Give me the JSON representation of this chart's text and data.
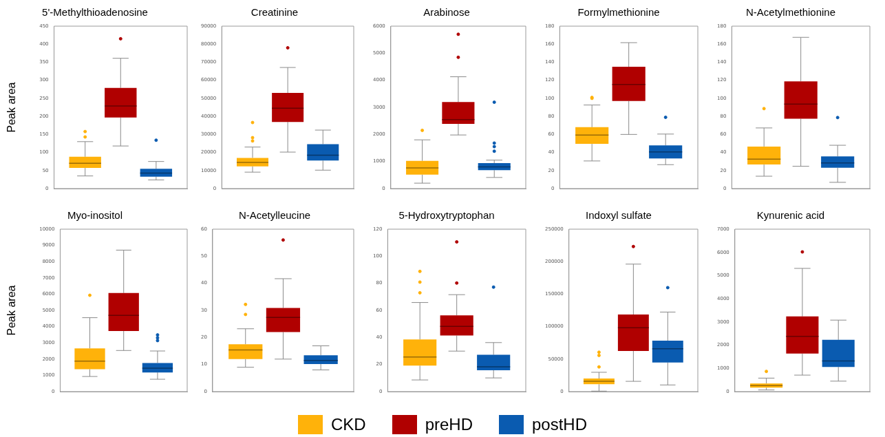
{
  "chart_data": [
    {
      "type": "box",
      "title": "5'-Methylthioadenosine",
      "ylabel": "Peak area",
      "categories": [
        null
      ],
      "ylim": [
        0,
        450
      ],
      "yticks": [
        0,
        50,
        100,
        150,
        200,
        250,
        300,
        350,
        400,
        450
      ],
      "tick_labels": "y",
      "legend": "bottom",
      "series": [
        {
          "name": "CKD",
          "color": "#ffb20a",
          "boxes": [
            {
              "low": 35,
              "q1": 57,
              "median": 70,
              "q3": 88,
              "high": 130,
              "outliers": [
                143,
                158
              ]
            }
          ]
        },
        {
          "name": "preHD",
          "color": "#b00000",
          "boxes": [
            {
              "low": 118,
              "q1": 197,
              "median": 229,
              "q3": 279,
              "high": 361,
              "outliers": [
                415
              ]
            }
          ]
        },
        {
          "name": "postHD",
          "color": "#0a5bb0",
          "boxes": [
            {
              "low": 24,
              "q1": 33,
              "median": 43,
              "q3": 55,
              "high": 75,
              "outliers": [
                134
              ]
            }
          ]
        }
      ]
    },
    {
      "type": "box",
      "title": "Creatinine",
      "categories": [
        null
      ],
      "ylim": [
        0,
        90000
      ],
      "yticks": [
        0,
        10000,
        20000,
        30000,
        40000,
        50000,
        60000,
        70000,
        80000,
        90000
      ],
      "tick_labels": "y",
      "series": [
        {
          "color": "#ffb20a",
          "boxes": [
            {
              "low": 9100,
              "q1": 12300,
              "median": 14500,
              "q3": 17000,
              "high": 23000,
              "outliers": [
                26400,
                28200,
                36600
              ]
            }
          ]
        },
        {
          "color": "#b00000",
          "boxes": [
            {
              "low": 20200,
              "q1": 36900,
              "median": 44500,
              "q3": 53000,
              "high": 67100,
              "outliers": [
                78000
              ]
            }
          ]
        },
        {
          "color": "#0a5bb0",
          "boxes": [
            {
              "low": 10200,
              "q1": 15500,
              "median": 18500,
              "q3": 24600,
              "high": 32400
            }
          ]
        }
      ]
    },
    {
      "type": "box",
      "title": "Arabinose",
      "categories": [
        null
      ],
      "ylim": [
        0,
        6000
      ],
      "yticks": [
        0,
        1000,
        2000,
        3000,
        4000,
        5000,
        6000
      ],
      "tick_labels": "y",
      "series": [
        {
          "color": "#ffb20a",
          "boxes": [
            {
              "low": 200,
              "q1": 516,
              "median": 760,
              "q3": 1023,
              "high": 1800,
              "outliers": [
                2150
              ]
            }
          ]
        },
        {
          "color": "#b00000",
          "boxes": [
            {
              "low": 1980,
              "q1": 2390,
              "median": 2550,
              "q3": 3195,
              "high": 4130,
              "outliers": [
                4850,
                5700
              ]
            }
          ]
        },
        {
          "color": "#0a5bb0",
          "boxes": [
            {
              "low": 410,
              "q1": 680,
              "median": 800,
              "q3": 940,
              "high": 1050,
              "outliers": [
                1380,
                1550,
                1680,
                3190
              ]
            }
          ]
        }
      ]
    },
    {
      "type": "box",
      "title": "Formylmethionine",
      "categories": [
        null
      ],
      "ylim": [
        0,
        180
      ],
      "yticks": [
        0,
        20,
        40,
        60,
        80,
        100,
        120,
        140,
        160,
        180
      ],
      "tick_labels": "y",
      "series": [
        {
          "color": "#ffb20a",
          "boxes": [
            {
              "low": 30.6,
              "q1": 49.5,
              "median": 59.3,
              "q3": 68,
              "high": 92.6,
              "outliers": [
                100,
                101
              ]
            }
          ]
        },
        {
          "color": "#b00000",
          "boxes": [
            {
              "low": 60,
              "q1": 97,
              "median": 115.3,
              "q3": 135,
              "high": 161.7
            }
          ]
        },
        {
          "color": "#0a5bb0",
          "boxes": [
            {
              "low": 26.5,
              "q1": 33.3,
              "median": 40.7,
              "q3": 47.8,
              "high": 60.4,
              "outliers": [
                79
              ]
            }
          ]
        }
      ]
    },
    {
      "type": "box",
      "title": "N-Acetylmethionine",
      "categories": [
        null
      ],
      "ylim": [
        0,
        180
      ],
      "yticks": [
        0,
        20,
        40,
        60,
        80,
        100,
        120,
        140,
        160,
        180
      ],
      "tick_labels": "y",
      "series": [
        {
          "color": "#ffb20a",
          "boxes": [
            {
              "low": 13.7,
              "q1": 26.6,
              "median": 32.6,
              "q3": 46.6,
              "high": 67.2,
              "outliers": [
                88.6
              ]
            }
          ]
        },
        {
          "color": "#b00000",
          "boxes": [
            {
              "low": 24.7,
              "q1": 77.4,
              "median": 93.6,
              "q3": 118.8,
              "high": 167.6
            }
          ]
        },
        {
          "color": "#0a5bb0",
          "boxes": [
            {
              "low": 6.9,
              "q1": 23,
              "median": 28.5,
              "q3": 35.7,
              "high": 48,
              "outliers": [
                78.7
              ]
            }
          ]
        }
      ]
    },
    {
      "type": "box",
      "title": "Myo-inositol",
      "ylabel": "Peak area",
      "categories": [
        null
      ],
      "ylim": [
        0,
        10000
      ],
      "yticks": [
        0,
        1000,
        2000,
        3000,
        4000,
        5000,
        6000,
        7000,
        8000,
        9000,
        10000
      ],
      "tick_labels": "y",
      "series": [
        {
          "color": "#ffb20a",
          "boxes": [
            {
              "low": 930,
              "q1": 1380,
              "median": 1880,
              "q3": 2660,
              "high": 4550,
              "outliers": [
                5930
              ]
            }
          ]
        },
        {
          "color": "#b00000",
          "boxes": [
            {
              "low": 2530,
              "q1": 3730,
              "median": 4690,
              "q3": 6070,
              "high": 8710
            }
          ]
        },
        {
          "color": "#0a5bb0",
          "boxes": [
            {
              "low": 760,
              "q1": 1180,
              "median": 1440,
              "q3": 1760,
              "high": 2500,
              "outliers": [
                3140,
                3310,
                3490
              ]
            }
          ]
        }
      ]
    },
    {
      "type": "box",
      "title": "N-Acetylleucine",
      "categories": [
        null
      ],
      "ylim": [
        0,
        60
      ],
      "yticks": [
        0,
        10,
        20,
        30,
        40,
        50,
        60
      ],
      "tick_labels": "y",
      "series": [
        {
          "color": "#ffb20a",
          "boxes": [
            {
              "low": 9,
              "q1": 12,
              "median": 15.4,
              "q3": 17.5,
              "high": 23.2,
              "outliers": [
                28.5,
                32.2
              ]
            }
          ]
        },
        {
          "color": "#b00000",
          "boxes": [
            {
              "low": 12,
              "q1": 22,
              "median": 27.4,
              "q3": 30.9,
              "high": 41.7,
              "outliers": [
                56
              ]
            }
          ]
        },
        {
          "color": "#0a5bb0",
          "boxes": [
            {
              "low": 8,
              "q1": 10.2,
              "median": 11.5,
              "q3": 13.4,
              "high": 16.9
            }
          ]
        }
      ]
    },
    {
      "type": "box",
      "title": "5-Hydroxytryptophan",
      "categories": [
        null
      ],
      "ylim": [
        0,
        120
      ],
      "yticks": [
        0,
        20,
        40,
        60,
        80,
        100,
        120
      ],
      "tick_labels": "y",
      "series": [
        {
          "color": "#ffb20a",
          "boxes": [
            {
              "low": 8.6,
              "q1": 19.2,
              "median": 25.5,
              "q3": 38.5,
              "high": 65.8,
              "outliers": [
                73,
                80.9,
                88.8
              ]
            }
          ]
        },
        {
          "color": "#b00000",
          "boxes": [
            {
              "low": 29.9,
              "q1": 41.4,
              "median": 48.2,
              "q3": 56.3,
              "high": 71.6,
              "outliers": [
                80.2,
                110.6
              ]
            }
          ]
        },
        {
          "color": "#0a5bb0",
          "boxes": [
            {
              "low": 10.1,
              "q1": 15.8,
              "median": 18.3,
              "q3": 27.2,
              "high": 36.2,
              "outliers": [
                77.2
              ]
            }
          ]
        }
      ]
    },
    {
      "type": "box",
      "title": "Indoxyl sulfate",
      "categories": [
        null
      ],
      "ylim": [
        0,
        250000
      ],
      "yticks": [
        0,
        50000,
        100000,
        150000,
        200000,
        250000
      ],
      "tick_labels": "y",
      "series": [
        {
          "color": "#ffb20a",
          "boxes": [
            {
              "low": 750,
              "q1": 11300,
              "median": 15800,
              "q3": 20000,
              "high": 29700,
              "outliers": [
                38000,
                55700,
                60600
              ]
            }
          ]
        },
        {
          "color": "#b00000",
          "boxes": [
            {
              "low": 15800,
              "q1": 62500,
              "median": 98300,
              "q3": 118600,
              "high": 196200,
              "outliers": [
                223300
              ]
            }
          ]
        },
        {
          "color": "#0a5bb0",
          "boxes": [
            {
              "low": 10200,
              "q1": 44800,
              "median": 65900,
              "q3": 78300,
              "high": 122400,
              "outliers": [
                160000
              ]
            }
          ]
        }
      ]
    },
    {
      "type": "box",
      "title": "Kynurenic acid",
      "categories": [
        null
      ],
      "ylim": [
        0,
        7000
      ],
      "yticks": [
        0,
        1000,
        2000,
        3000,
        4000,
        5000,
        6000,
        7000
      ],
      "tick_labels": "y",
      "series": [
        {
          "color": "#ffb20a",
          "boxes": [
            {
              "low": 70,
              "q1": 170,
              "median": 260,
              "q3": 350,
              "high": 580,
              "outliers": [
                870
              ]
            }
          ]
        },
        {
          "color": "#b00000",
          "boxes": [
            {
              "low": 710,
              "q1": 1640,
              "median": 2380,
              "q3": 3240,
              "high": 5310,
              "outliers": [
                6020
              ]
            }
          ]
        },
        {
          "color": "#0a5bb0",
          "boxes": [
            {
              "low": 450,
              "q1": 1060,
              "median": 1320,
              "q3": 2230,
              "high": 3080
            }
          ]
        }
      ]
    }
  ]
}
